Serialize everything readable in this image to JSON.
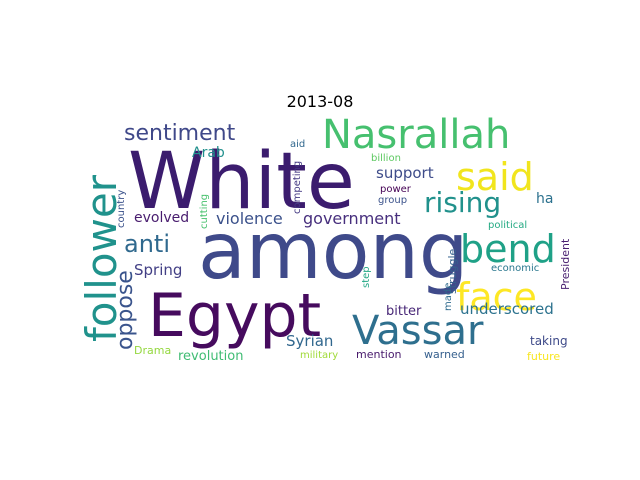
{
  "chart_data": {
    "type": "wordcloud",
    "title": "2013-08",
    "words": [
      {
        "text": "White",
        "color": "#3b1c6e"
      },
      {
        "text": "among",
        "color": "#3f4a8a"
      },
      {
        "text": "Egypt",
        "color": "#460b5e"
      },
      {
        "text": "Nasrallah",
        "color": "#46c06f"
      },
      {
        "text": "said",
        "color": "#f1e51d"
      },
      {
        "text": "follower",
        "color": "#20928c"
      },
      {
        "text": "Vassar",
        "color": "#2e6f8e"
      },
      {
        "text": "bend",
        "color": "#1fa187"
      },
      {
        "text": "face",
        "color": "#fde725"
      },
      {
        "text": "rising",
        "color": "#21918c"
      },
      {
        "text": "anti",
        "color": "#30698e"
      },
      {
        "text": "sentiment",
        "color": "#3f4889"
      },
      {
        "text": "oppose",
        "color": "#3a548c"
      },
      {
        "text": "violence",
        "color": "#3b518b"
      },
      {
        "text": "government",
        "color": "#472f7d"
      },
      {
        "text": "support",
        "color": "#3e4c8a"
      },
      {
        "text": "Spring",
        "color": "#423f85"
      },
      {
        "text": "underscored",
        "color": "#2c728e"
      },
      {
        "text": "Syrian",
        "color": "#31678e"
      },
      {
        "text": "evolved",
        "color": "#481c6e"
      },
      {
        "text": "revolution",
        "color": "#3fbc73"
      },
      {
        "text": "Arab",
        "color": "#21908d"
      },
      {
        "text": "ha",
        "color": "#2c718e"
      },
      {
        "text": "bitter",
        "color": "#482777"
      },
      {
        "text": "taking",
        "color": "#3e4a89"
      },
      {
        "text": "Drama",
        "color": "#95d840"
      },
      {
        "text": "future",
        "color": "#f8e621"
      },
      {
        "text": "mention",
        "color": "#481a6c"
      },
      {
        "text": "warned",
        "color": "#355f8d"
      },
      {
        "text": "military",
        "color": "#a0da39"
      },
      {
        "text": "President",
        "color": "#481f70"
      },
      {
        "text": "struggle",
        "color": "#34618d"
      },
      {
        "text": "made",
        "color": "#2f6b8e"
      },
      {
        "text": "step",
        "color": "#22a785"
      },
      {
        "text": "economic",
        "color": "#2a778e"
      },
      {
        "text": "political",
        "color": "#24aa83"
      },
      {
        "text": "competing",
        "color": "#443a83"
      },
      {
        "text": "cutting",
        "color": "#48c16e"
      },
      {
        "text": "country",
        "color": "#3b528b"
      },
      {
        "text": "power",
        "color": "#440154"
      },
      {
        "text": "group",
        "color": "#3b528b"
      },
      {
        "text": "billion",
        "color": "#5ec962"
      },
      {
        "text": "aid",
        "color": "#31688e"
      }
    ]
  }
}
